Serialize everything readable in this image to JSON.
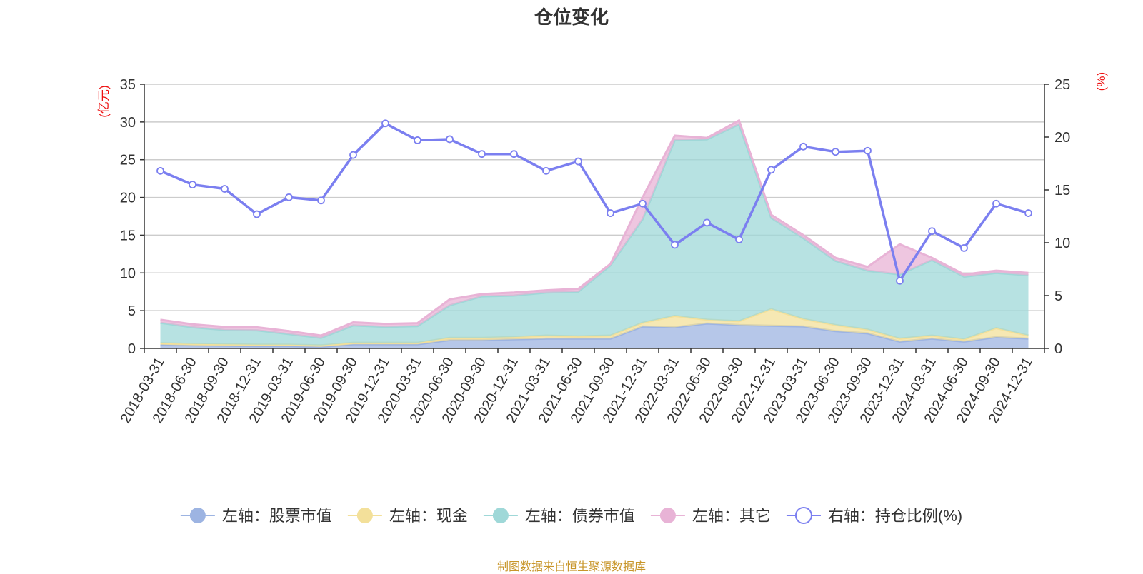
{
  "chart_data": {
    "type": "area",
    "title": "仓位变化",
    "left_axis_label": "(亿元)",
    "right_axis_label": "(%)",
    "left_ylim": [
      0,
      35
    ],
    "left_ticks": [
      0,
      5,
      10,
      15,
      20,
      25,
      30,
      35
    ],
    "right_ylim": [
      0,
      25
    ],
    "right_ticks": [
      0,
      5,
      10,
      15,
      20,
      25
    ],
    "categories": [
      "2018-03-31",
      "2018-06-30",
      "2018-09-30",
      "2018-12-31",
      "2019-03-31",
      "2019-06-30",
      "2019-09-30",
      "2019-12-31",
      "2020-03-31",
      "2020-06-30",
      "2020-09-30",
      "2020-12-31",
      "2021-03-31",
      "2021-06-30",
      "2021-09-30",
      "2021-12-31",
      "2022-03-31",
      "2022-06-30",
      "2022-09-30",
      "2022-12-31",
      "2023-03-31",
      "2023-06-30",
      "2023-09-30",
      "2023-12-31",
      "2024-03-31",
      "2024-06-30",
      "2024-09-30",
      "2024-12-31"
    ],
    "stacked_series": [
      {
        "name": "左轴：股票市值",
        "color": "#9db4e2",
        "values": [
          0.5,
          0.4,
          0.35,
          0.3,
          0.3,
          0.2,
          0.55,
          0.55,
          0.55,
          1.1,
          1.1,
          1.2,
          1.3,
          1.3,
          1.3,
          2.9,
          2.8,
          3.3,
          3.1,
          3.0,
          2.9,
          2.3,
          2.0,
          0.9,
          1.3,
          0.9,
          1.5,
          1.3
        ]
      },
      {
        "name": "左轴：现金",
        "color": "#f3e09a",
        "values": [
          0.2,
          0.2,
          0.2,
          0.2,
          0.2,
          0.2,
          0.2,
          0.2,
          0.2,
          0.3,
          0.3,
          0.3,
          0.4,
          0.3,
          0.4,
          0.5,
          1.5,
          0.5,
          0.5,
          2.2,
          1.0,
          0.8,
          0.5,
          0.4,
          0.4,
          0.3,
          1.2,
          0.4
        ]
      },
      {
        "name": "左轴：债券市值",
        "color": "#9fd8d8",
        "values": [
          2.7,
          2.2,
          1.9,
          1.9,
          1.4,
          1.0,
          2.3,
          2.1,
          2.2,
          4.3,
          5.5,
          5.5,
          5.7,
          5.9,
          9.3,
          13.7,
          23.3,
          23.9,
          26.1,
          12.1,
          10.7,
          8.5,
          7.8,
          8.5,
          10.0,
          8.3,
          7.3,
          8.0
        ]
      },
      {
        "name": "左轴：其它",
        "color": "#e8b3d6",
        "values": [
          0.4,
          0.4,
          0.4,
          0.4,
          0.4,
          0.3,
          0.4,
          0.4,
          0.4,
          0.8,
          0.3,
          0.4,
          0.3,
          0.4,
          0.2,
          2.9,
          0.6,
          0.2,
          0.5,
          0.4,
          0.4,
          0.4,
          0.5,
          4.0,
          0.3,
          0.3,
          0.3,
          0.3
        ]
      }
    ],
    "line_series": {
      "name": "右轴：持仓比例(%)",
      "color": "#7b7ff0",
      "values": [
        16.8,
        15.5,
        15.1,
        12.7,
        14.3,
        14.0,
        18.3,
        21.3,
        19.7,
        19.8,
        18.4,
        18.4,
        16.8,
        17.7,
        12.8,
        13.7,
        9.8,
        11.9,
        10.3,
        16.9,
        19.1,
        18.6,
        18.7,
        6.4,
        11.1,
        9.5,
        13.7,
        12.8
      ]
    }
  },
  "legend": [
    {
      "label": "左轴：股票市值",
      "color": "#9db4e2",
      "kind": "filled"
    },
    {
      "label": "左轴：现金",
      "color": "#f3e09a",
      "kind": "filled"
    },
    {
      "label": "左轴：债券市值",
      "color": "#9fd8d8",
      "kind": "filled"
    },
    {
      "label": "左轴：其它",
      "color": "#e8b3d6",
      "kind": "filled"
    },
    {
      "label": "右轴：持仓比例(%)",
      "color": "#7b7ff0",
      "kind": "hollow"
    }
  ],
  "source": "制图数据来自恒生聚源数据库"
}
